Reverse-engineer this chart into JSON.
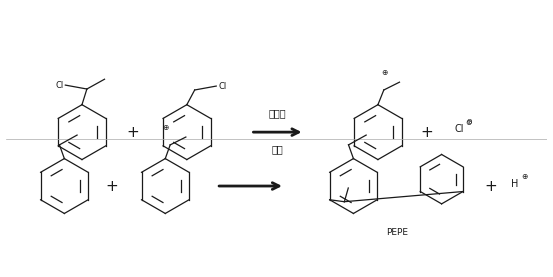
{
  "background_color": "#ffffff",
  "line_color": "#1a1a1a",
  "fig_width": 5.53,
  "fig_height": 2.77,
  "dpi": 100,
  "arrow1_label_top": "催化剂",
  "arrow1_label_bottom": "重排",
  "pepe_label": "PEPE"
}
